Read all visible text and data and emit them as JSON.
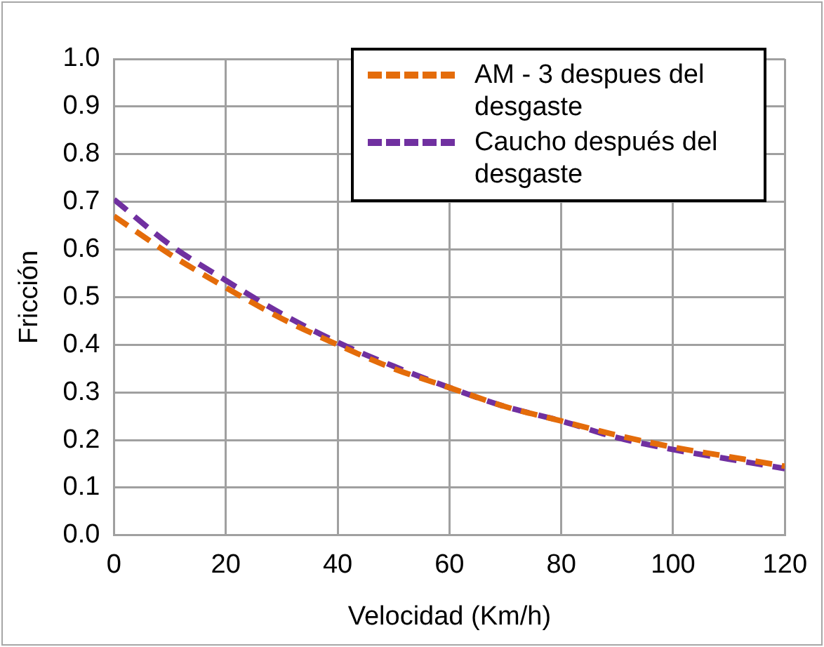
{
  "chart_data": {
    "type": "line",
    "xlabel": "Velocidad (Km/h)",
    "ylabel": "Fricción",
    "x": [
      0,
      10,
      20,
      30,
      40,
      50,
      60,
      70,
      80,
      90,
      100,
      110,
      120
    ],
    "series": [
      {
        "name": "AM - 3 despues del desgaste",
        "color": "#e46c0a",
        "values": [
          0.67,
          0.59,
          0.52,
          0.455,
          0.4,
          0.35,
          0.31,
          0.27,
          0.24,
          0.21,
          0.185,
          0.165,
          0.145
        ]
      },
      {
        "name": "Caucho después del desgaste",
        "color": "#7030a0",
        "values": [
          0.705,
          0.61,
          0.535,
          0.465,
          0.405,
          0.355,
          0.31,
          0.27,
          0.24,
          0.205,
          0.18,
          0.16,
          0.14
        ]
      }
    ],
    "xlim": [
      0,
      120
    ],
    "xticks": [
      0,
      20,
      40,
      60,
      80,
      100,
      120
    ],
    "ylim": [
      0,
      1
    ],
    "yticks": [
      {
        "value": 0,
        "label": "0.0"
      },
      {
        "value": 0.1,
        "label": "0.1"
      },
      {
        "value": 0.2,
        "label": "0.2"
      },
      {
        "value": 0.3,
        "label": "0.3"
      },
      {
        "value": 0.4,
        "label": "0.4"
      },
      {
        "value": 0.5,
        "label": "0.5"
      },
      {
        "value": 0.6,
        "label": "0.6"
      },
      {
        "value": 0.7,
        "label": "0.7"
      },
      {
        "value": 0.8,
        "label": "0.8"
      },
      {
        "value": 0.9,
        "label": "0.9"
      },
      {
        "value": 1,
        "label": "1.0"
      }
    ],
    "grid": true,
    "legend": "top right",
    "marker": "none",
    "line_style": "dashed"
  }
}
